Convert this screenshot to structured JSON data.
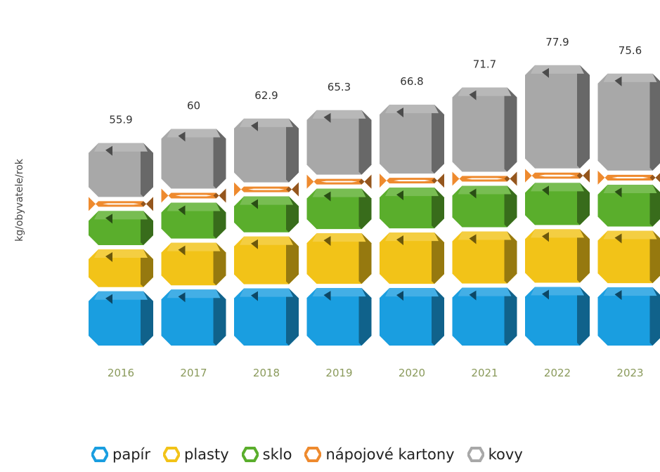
{
  "chart_data": {
    "type": "bar",
    "stacked": true,
    "ylabel": "kg/obyvatele/rok",
    "categories": [
      "2016",
      "2017",
      "2018",
      "2019",
      "2020",
      "2021",
      "2022",
      "2023"
    ],
    "totals": [
      55.9,
      60,
      62.9,
      65.3,
      66.8,
      71.7,
      77.9,
      75.6
    ],
    "total_labels": [
      "55.9",
      "60",
      "62.9",
      "65.3",
      "66.8",
      "71.7",
      "77.9",
      "75.6"
    ],
    "series": [
      {
        "name": "papír",
        "color": "#1a9ee0",
        "values": [
          16,
          16.5,
          16.8,
          16.9,
          16.9,
          17.0,
          17.2,
          17.1
        ]
      },
      {
        "name": "plasty",
        "color": "#f2c318",
        "values": [
          11.5,
          12.8,
          14.2,
          15.0,
          15.2,
          15.4,
          15.8,
          15.5
        ]
      },
      {
        "name": "sklo",
        "color": "#5aae2c",
        "values": [
          10.5,
          11.0,
          11.0,
          12.2,
          12.3,
          12.5,
          12.7,
          12.6
        ]
      },
      {
        "name": "nápojové kartony",
        "color": "#ee8a2e",
        "values": [
          2.0,
          2.2,
          2.3,
          2.4,
          2.4,
          2.6,
          2.8,
          2.7
        ]
      },
      {
        "name": "kovy",
        "color": "#a8a8a8",
        "values": [
          15.9,
          17.5,
          18.6,
          18.8,
          20.0,
          24.2,
          29.4,
          27.7
        ]
      }
    ],
    "grid": false,
    "legend_position": "bottom"
  }
}
